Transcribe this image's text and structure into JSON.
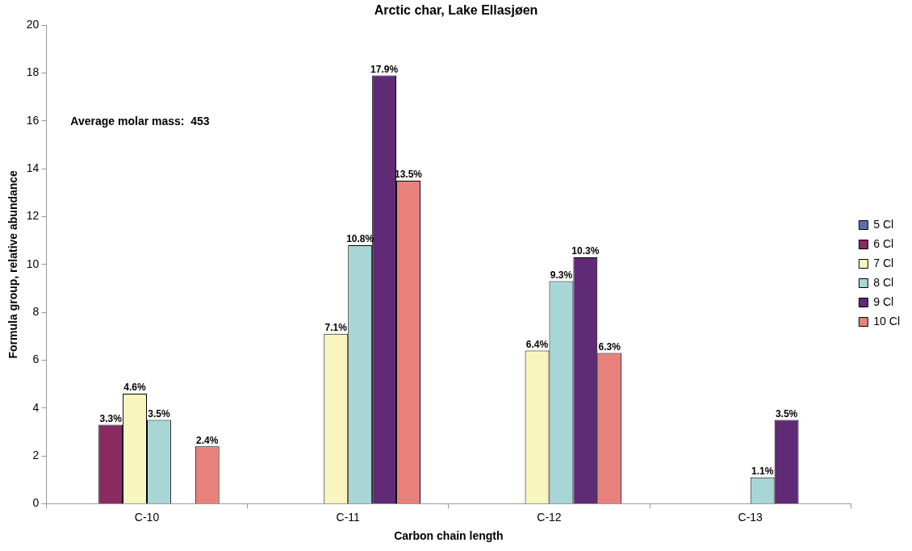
{
  "chart_data": {
    "type": "bar",
    "title": "Arctic char, Lake Ellasjøen",
    "xlabel": "Carbon chain length",
    "ylabel": "Formula group, relative abundance",
    "categories": [
      "C-10",
      "C-11",
      "C-12",
      "C-13"
    ],
    "series": [
      {
        "name": "5 Cl",
        "color": "#5a6fae",
        "values": [
          null,
          null,
          null,
          null
        ]
      },
      {
        "name": "6 Cl",
        "color": "#8a2a60",
        "values": [
          3.3,
          null,
          null,
          null
        ],
        "value_labels": [
          "3.3%",
          null,
          null,
          null
        ]
      },
      {
        "name": "7 Cl",
        "color": "#f8f6be",
        "values": [
          4.6,
          7.1,
          6.4,
          null
        ],
        "value_labels": [
          "4.6%",
          "7.1%",
          "6.4%",
          null
        ]
      },
      {
        "name": "8 Cl",
        "color": "#a8d6d6",
        "values": [
          3.5,
          10.8,
          9.3,
          1.1
        ],
        "value_labels": [
          "3.5%",
          "10.8%",
          "9.3%",
          "1.1%"
        ]
      },
      {
        "name": "9 Cl",
        "color": "#5f2a76",
        "values": [
          null,
          17.9,
          10.3,
          3.5
        ],
        "value_labels": [
          null,
          "17.9%",
          "10.3%",
          "3.5%"
        ]
      },
      {
        "name": "10 Cl",
        "color": "#e8817b",
        "values": [
          2.4,
          13.5,
          6.3,
          null
        ],
        "value_labels": [
          "2.4%",
          "13.5%",
          "6.3%",
          null
        ]
      }
    ],
    "ylim": [
      0,
      20
    ],
    "yticks": [
      0,
      2,
      4,
      6,
      8,
      10,
      12,
      14,
      16,
      18,
      20
    ],
    "grid": false,
    "legend": "right",
    "annotations": [
      "Average molar mass:  453"
    ]
  }
}
